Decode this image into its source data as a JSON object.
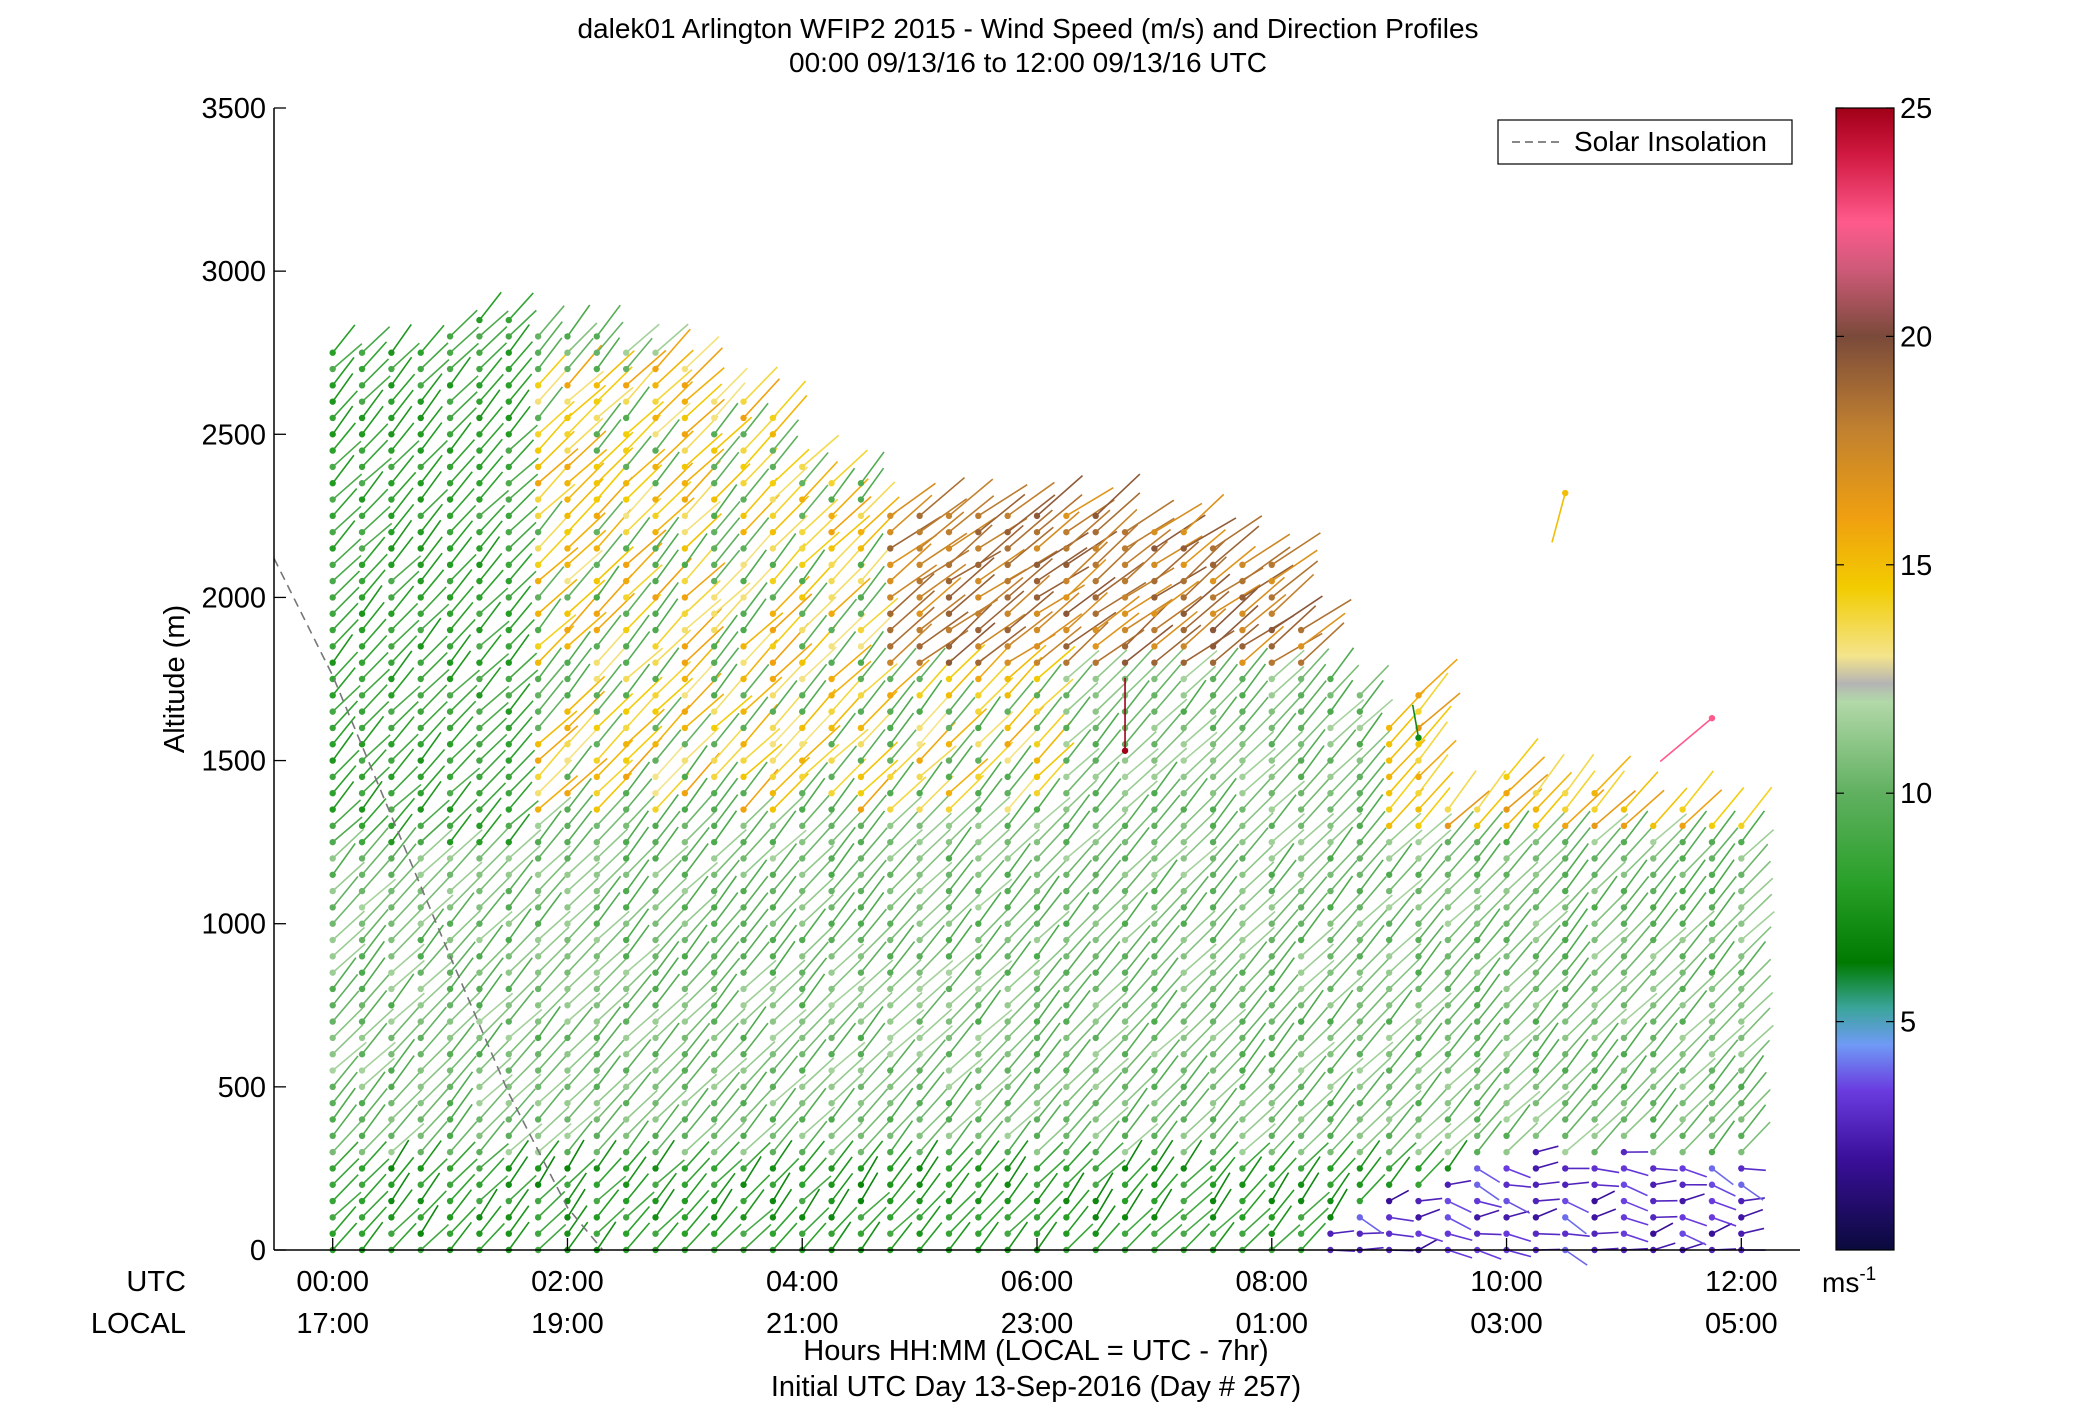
{
  "chart_data": {
    "type": "wind-barb-profile",
    "title": "dalek01 Arlington WFIP2 2015 - Wind Speed (m/s) and Direction Profiles",
    "subtitle": "00:00 09/13/16 to 12:00 09/13/16  UTC",
    "ylabel": "Altitude (m)",
    "xlabel": "Hours HH:MM  (LOCAL = UTC - 7hr)",
    "xlabel2": "Initial UTC Day 13-Sep-2016 (Day # 257)",
    "ylim": [
      0,
      3500
    ],
    "yticks": [
      0,
      500,
      1000,
      1500,
      2000,
      2500,
      3000,
      3500
    ],
    "xlim_hours": [
      -0.5,
      12.5
    ],
    "row_label_utc": "UTC",
    "row_label_local": "LOCAL",
    "xticks_utc": [
      {
        "hour": 0,
        "label": "00:00"
      },
      {
        "hour": 2,
        "label": "02:00"
      },
      {
        "hour": 4,
        "label": "04:00"
      },
      {
        "hour": 6,
        "label": "06:00"
      },
      {
        "hour": 8,
        "label": "08:00"
      },
      {
        "hour": 10,
        "label": "10:00"
      },
      {
        "hour": 12,
        "label": "12:00"
      }
    ],
    "xticks_local": [
      {
        "hour": 0,
        "label": "17:00"
      },
      {
        "hour": 2,
        "label": "19:00"
      },
      {
        "hour": 4,
        "label": "21:00"
      },
      {
        "hour": 6,
        "label": "23:00"
      },
      {
        "hour": 8,
        "label": "01:00"
      },
      {
        "hour": 10,
        "label": "03:00"
      },
      {
        "hour": 12,
        "label": "05:00"
      }
    ],
    "legend": {
      "label": "Solar Insolation",
      "position": "top-right",
      "line_style": "dashed",
      "color": "#777777"
    },
    "solar_insolation_line": [
      [
        -0.5,
        2120
      ],
      [
        0,
        1760
      ],
      [
        0.5,
        1330
      ],
      [
        1,
        900
      ],
      [
        1.5,
        480
      ],
      [
        2,
        130
      ],
      [
        2.3,
        0
      ]
    ],
    "colorbar": {
      "range": [
        0,
        25
      ],
      "ticks": [
        5,
        10,
        15,
        20,
        25
      ],
      "unit_label": "ms",
      "unit_exponent": "-1",
      "stops": [
        {
          "value": 0,
          "color": "#0a0a3c"
        },
        {
          "value": 2,
          "color": "#3a0f9a"
        },
        {
          "value": 3.5,
          "color": "#6a3ce0"
        },
        {
          "value": 4.5,
          "color": "#6f9af5"
        },
        {
          "value": 5.3,
          "color": "#3aa59a"
        },
        {
          "value": 6.3,
          "color": "#007a00"
        },
        {
          "value": 8,
          "color": "#28a028"
        },
        {
          "value": 10,
          "color": "#60b060"
        },
        {
          "value": 12,
          "color": "#b2d8a8"
        },
        {
          "value": 12.4,
          "color": "#b4b4b4"
        },
        {
          "value": 13,
          "color": "#f4e48c"
        },
        {
          "value": 14.5,
          "color": "#f2cc00"
        },
        {
          "value": 16,
          "color": "#f0a010"
        },
        {
          "value": 18,
          "color": "#c08030"
        },
        {
          "value": 20,
          "color": "#7a4a3a"
        },
        {
          "value": 21.5,
          "color": "#d05a7a"
        },
        {
          "value": 22.5,
          "color": "#ff5a8c"
        },
        {
          "value": 24,
          "color": "#d01840"
        },
        {
          "value": 25,
          "color": "#a00018"
        }
      ]
    },
    "profiles": {
      "time_start_hour": 0,
      "time_step_hours": 0.25,
      "altitude_step_m": 50,
      "top_altitude_m": [
        2760,
        2750,
        2750,
        2770,
        2840,
        2860,
        2850,
        2800,
        2840,
        2840,
        2770,
        2750,
        2700,
        2640,
        2620,
        2560,
        2420,
        2350,
        2350,
        2280,
        2250,
        2270,
        2270,
        2260,
        2250,
        2250,
        2260,
        2240,
        2220,
        2220,
        2150,
        2110,
        2100,
        1900,
        1780,
        1730,
        1620,
        1700,
        1370,
        1370,
        1450,
        1420,
        1430,
        1410,
        1380,
        1340,
        1350,
        1330,
        1300
      ],
      "low_speed_top_m": [
        0,
        0,
        0,
        0,
        0,
        0,
        0,
        0,
        0,
        0,
        0,
        0,
        0,
        0,
        0,
        0,
        0,
        0,
        0,
        0,
        0,
        0,
        0,
        0,
        0,
        0,
        0,
        0,
        0,
        0,
        0,
        0,
        0,
        0,
        80,
        120,
        160,
        180,
        250,
        300,
        300,
        320,
        300,
        300,
        320,
        280,
        300,
        300,
        300
      ],
      "high_speed_band": {
        "time_range_hours": [
          1.75,
          6.0
        ],
        "altitude_range_m": [
          1350,
          2700
        ],
        "speed_ms": 14.5
      },
      "upper_jet": {
        "time_range_hours": [
          4.75,
          9.25
        ],
        "altitude_min_m": 1800,
        "speed_ms": 17.5
      },
      "description_speeds_ms": {
        "surface": 8,
        "boundary_layer": 10.5,
        "low_level_night": 3
      }
    },
    "isolated_barbs": [
      {
        "hour": 10.5,
        "altitude_m": 2320,
        "speed_ms": 15,
        "direction_deg": 195
      },
      {
        "hour": 11.75,
        "altitude_m": 1630,
        "speed_ms": 22.5,
        "direction_deg": 230
      },
      {
        "hour": 9.25,
        "altitude_m": 1570,
        "speed_ms": 7,
        "direction_deg": 350
      },
      {
        "hour": 6.75,
        "altitude_m": 1530,
        "speed_ms": 25,
        "direction_deg": 0
      }
    ]
  }
}
